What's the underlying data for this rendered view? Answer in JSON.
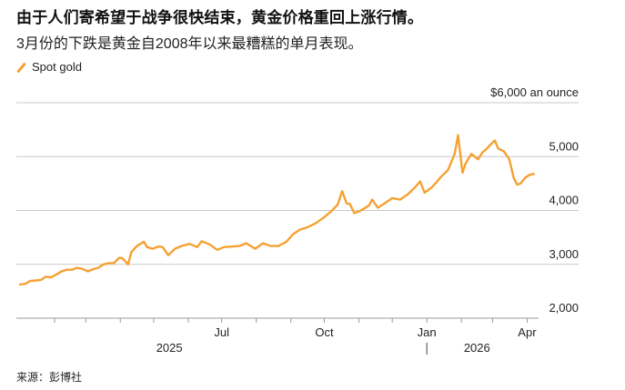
{
  "header": {
    "title": "由于人们寄希望于战争很快结束，黄金价格重回上涨行情。",
    "subtitle": "3月份的下跌是黄金自2008年以来最糟糕的单月表现。"
  },
  "legend": {
    "label": "Spot gold"
  },
  "footer": {
    "source": "来源：彭博社"
  },
  "colors": {
    "series": "#f5a132",
    "grid": "#c8c8c8",
    "axis": "#999999"
  },
  "chart_data": {
    "type": "line",
    "title": "",
    "xlabel": "",
    "ylabel": "",
    "y_unit_label": "$6,000 an ounce",
    "ylim": [
      2000,
      6000
    ],
    "yticks": [
      2000,
      3000,
      4000,
      5000,
      6000
    ],
    "ytick_labels": [
      "2,000",
      "3,000",
      "4,000",
      "5,000",
      "$6,000"
    ],
    "xlim": [
      "2025-01-01",
      "2026-04-08"
    ],
    "xticks": [
      {
        "date": "2025-07-01",
        "label": "Jul"
      },
      {
        "date": "2025-10-01",
        "label": "Oct"
      },
      {
        "date": "2026-01-01",
        "label": "Jan"
      },
      {
        "date": "2026-04-01",
        "label": "Apr"
      }
    ],
    "year_labels": [
      {
        "label": "2025",
        "date": "2025-05-15"
      },
      {
        "label": "2026",
        "date": "2026-02-15"
      }
    ],
    "year_divider": "2026-01-01",
    "grid": true,
    "legend": "top-left",
    "series": [
      {
        "name": "Spot gold",
        "color": "#f5a132",
        "points": [
          [
            "2025-01-01",
            2625
          ],
          [
            "2025-01-06",
            2640
          ],
          [
            "2025-01-10",
            2690
          ],
          [
            "2025-01-15",
            2700
          ],
          [
            "2025-01-20",
            2710
          ],
          [
            "2025-01-24",
            2770
          ],
          [
            "2025-01-29",
            2760
          ],
          [
            "2025-02-03",
            2815
          ],
          [
            "2025-02-07",
            2865
          ],
          [
            "2025-02-12",
            2900
          ],
          [
            "2025-02-17",
            2900
          ],
          [
            "2025-02-21",
            2935
          ],
          [
            "2025-02-26",
            2915
          ],
          [
            "2025-03-03",
            2870
          ],
          [
            "2025-03-07",
            2905
          ],
          [
            "2025-03-12",
            2935
          ],
          [
            "2025-03-17",
            3000
          ],
          [
            "2025-03-21",
            3020
          ],
          [
            "2025-03-26",
            3020
          ],
          [
            "2025-03-31",
            3120
          ],
          [
            "2025-04-03",
            3110
          ],
          [
            "2025-04-08",
            3000
          ],
          [
            "2025-04-11",
            3230
          ],
          [
            "2025-04-16",
            3340
          ],
          [
            "2025-04-22",
            3420
          ],
          [
            "2025-04-25",
            3320
          ],
          [
            "2025-04-30",
            3290
          ],
          [
            "2025-05-05",
            3330
          ],
          [
            "2025-05-09",
            3320
          ],
          [
            "2025-05-14",
            3170
          ],
          [
            "2025-05-20",
            3290
          ],
          [
            "2025-05-26",
            3340
          ],
          [
            "2025-06-02",
            3380
          ],
          [
            "2025-06-09",
            3320
          ],
          [
            "2025-06-13",
            3430
          ],
          [
            "2025-06-20",
            3370
          ],
          [
            "2025-06-27",
            3270
          ],
          [
            "2025-07-03",
            3320
          ],
          [
            "2025-07-10",
            3330
          ],
          [
            "2025-07-17",
            3340
          ],
          [
            "2025-07-23",
            3390
          ],
          [
            "2025-07-31",
            3290
          ],
          [
            "2025-08-07",
            3390
          ],
          [
            "2025-08-14",
            3340
          ],
          [
            "2025-08-21",
            3340
          ],
          [
            "2025-08-28",
            3420
          ],
          [
            "2025-09-03",
            3560
          ],
          [
            "2025-09-09",
            3640
          ],
          [
            "2025-09-16",
            3690
          ],
          [
            "2025-09-23",
            3760
          ],
          [
            "2025-09-30",
            3860
          ],
          [
            "2025-10-07",
            3980
          ],
          [
            "2025-10-13",
            4110
          ],
          [
            "2025-10-17",
            4360
          ],
          [
            "2025-10-21",
            4130
          ],
          [
            "2025-10-24",
            4120
          ],
          [
            "2025-10-28",
            3950
          ],
          [
            "2025-11-03",
            4000
          ],
          [
            "2025-11-10",
            4090
          ],
          [
            "2025-11-13",
            4200
          ],
          [
            "2025-11-18",
            4050
          ],
          [
            "2025-11-24",
            4130
          ],
          [
            "2025-12-01",
            4230
          ],
          [
            "2025-12-08",
            4200
          ],
          [
            "2025-12-15",
            4300
          ],
          [
            "2025-12-22",
            4440
          ],
          [
            "2025-12-26",
            4540
          ],
          [
            "2025-12-30",
            4330
          ],
          [
            "2026-01-05",
            4420
          ],
          [
            "2026-01-09",
            4510
          ],
          [
            "2026-01-14",
            4630
          ],
          [
            "2026-01-20",
            4750
          ],
          [
            "2026-01-26",
            5050
          ],
          [
            "2026-01-29",
            5400
          ],
          [
            "2026-02-02",
            4700
          ],
          [
            "2026-02-05",
            4880
          ],
          [
            "2026-02-10",
            5050
          ],
          [
            "2026-02-16",
            4950
          ],
          [
            "2026-02-20",
            5080
          ],
          [
            "2026-02-24",
            5150
          ],
          [
            "2026-02-27",
            5220
          ],
          [
            "2026-03-03",
            5300
          ],
          [
            "2026-03-06",
            5150
          ],
          [
            "2026-03-11",
            5100
          ],
          [
            "2026-03-16",
            4950
          ],
          [
            "2026-03-20",
            4600
          ],
          [
            "2026-03-23",
            4480
          ],
          [
            "2026-03-26",
            4500
          ],
          [
            "2026-03-30",
            4600
          ],
          [
            "2026-04-03",
            4660
          ],
          [
            "2026-04-07",
            4680
          ]
        ]
      }
    ]
  }
}
